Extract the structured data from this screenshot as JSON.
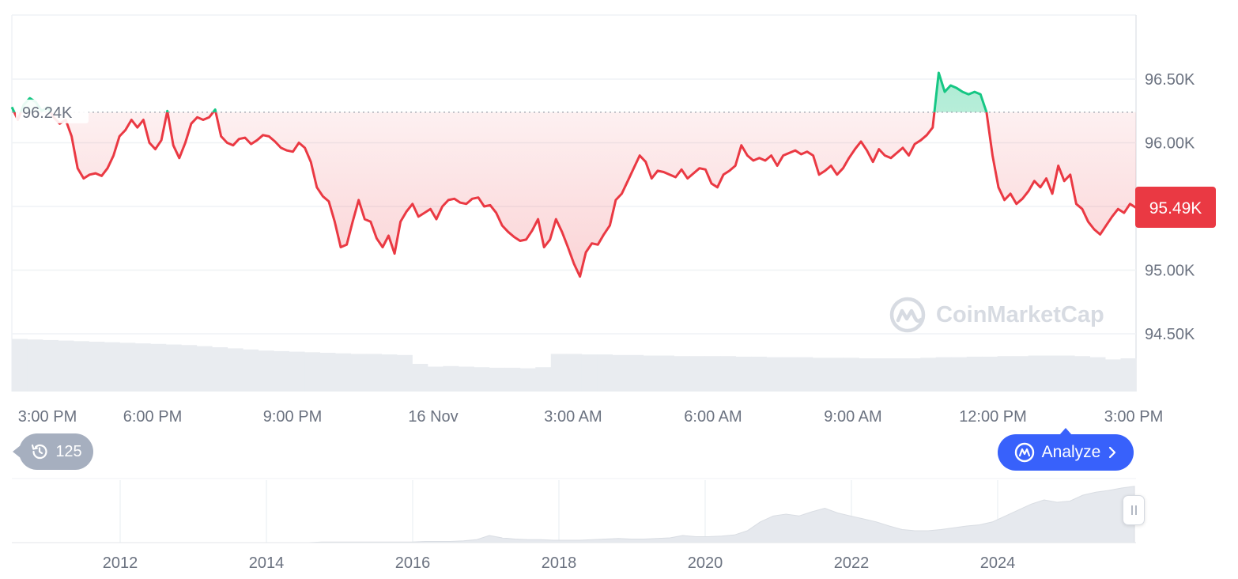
{
  "chart_data": {
    "type": "line",
    "title": "",
    "xlabel": "",
    "ylabel": "",
    "ylim": [
      94250,
      97000
    ],
    "y_ticks": [
      {
        "value": 96500,
        "label": "96.50K"
      },
      {
        "value": 96000,
        "label": "96.00K"
      },
      {
        "value": 95000,
        "label": "95.00K"
      },
      {
        "value": 94500,
        "label": "94.50K"
      }
    ],
    "x_ticks": [
      "3:00 PM",
      "6:00 PM",
      "9:00 PM",
      "16 Nov",
      "3:00 AM",
      "6:00 AM",
      "9:00 AM",
      "12:00 PM",
      "3:00 PM"
    ],
    "reference": {
      "value": 96240,
      "label": "96.24K"
    },
    "current": {
      "value": 95490,
      "label": "95.49K"
    },
    "series": [
      {
        "values": [
          96280,
          96180,
          96300,
          96350,
          96320,
          96250,
          96280,
          96200,
          96150,
          96180,
          96050,
          95800,
          95720,
          95750,
          95760,
          95740,
          95800,
          95900,
          96050,
          96100,
          96180,
          96120,
          96180,
          96000,
          95950,
          96020,
          96250,
          95980,
          95880,
          96000,
          96150,
          96200,
          96180,
          96200,
          96260,
          96050,
          96000,
          95980,
          96030,
          96040,
          95990,
          96020,
          96060,
          96050,
          96010,
          95960,
          95940,
          95930,
          96000,
          95960,
          95850,
          95650,
          95580,
          95540,
          95380,
          95180,
          95200,
          95380,
          95550,
          95400,
          95380,
          95250,
          95180,
          95270,
          95130,
          95380,
          95460,
          95520,
          95420,
          95450,
          95480,
          95400,
          95500,
          95550,
          95560,
          95530,
          95520,
          95560,
          95570,
          95500,
          95510,
          95450,
          95350,
          95300,
          95260,
          95230,
          95240,
          95310,
          95400,
          95180,
          95240,
          95400,
          95300,
          95180,
          95050,
          94950,
          95140,
          95210,
          95200,
          95280,
          95350,
          95550,
          95600,
          95700,
          95800,
          95900,
          95850,
          95720,
          95780,
          95770,
          95750,
          95730,
          95790,
          95720,
          95760,
          95800,
          95790,
          95680,
          95650,
          95750,
          95780,
          95820,
          95980,
          95900,
          95860,
          95880,
          95860,
          95900,
          95820,
          95900,
          95920,
          95940,
          95910,
          95930,
          95900,
          95750,
          95780,
          95820,
          95750,
          95800,
          95880,
          95950,
          96010,
          95940,
          95850,
          95950,
          95900,
          95880,
          95920,
          95960,
          95900,
          95990,
          96020,
          96060,
          96120,
          96550,
          96400,
          96450,
          96430,
          96400,
          96380,
          96400,
          96380,
          96240,
          95900,
          95650,
          95550,
          95600,
          95520,
          95560,
          95620,
          95700,
          95650,
          95720,
          95600,
          95820,
          95700,
          95750,
          95520,
          95480,
          95380,
          95320,
          95280,
          95350,
          95420,
          95480,
          95450,
          95520,
          95490
        ]
      }
    ],
    "volume_bars_relative": [
      0.95,
      0.94,
      0.93,
      0.92,
      0.91,
      0.9,
      0.89,
      0.88,
      0.87,
      0.86,
      0.85,
      0.84,
      0.82,
      0.8,
      0.78,
      0.76,
      0.74,
      0.73,
      0.72,
      0.71,
      0.7,
      0.69,
      0.68,
      0.68,
      0.67,
      0.66,
      0.5,
      0.45,
      0.46,
      0.45,
      0.44,
      0.43,
      0.43,
      0.42,
      0.44,
      0.68,
      0.68,
      0.67,
      0.67,
      0.66,
      0.66,
      0.65,
      0.65,
      0.64,
      0.64,
      0.64,
      0.64,
      0.63,
      0.63,
      0.62,
      0.62,
      0.62,
      0.61,
      0.61,
      0.61,
      0.6,
      0.6,
      0.6,
      0.6,
      0.61,
      0.62,
      0.62,
      0.63,
      0.63,
      0.64,
      0.64,
      0.65,
      0.65,
      0.65,
      0.64,
      0.62,
      0.58,
      0.6
    ],
    "navigator": {
      "x_ticks": [
        "2012",
        "2014",
        "2016",
        "2018",
        "2020",
        "2022",
        "2024"
      ],
      "relative_values": [
        0.0,
        0.0,
        0.0,
        0.0,
        0.0,
        0.0,
        0.0,
        0.0,
        0.0,
        0.0,
        0.0,
        0.0,
        0.0,
        0.0,
        0.0,
        0.0,
        0.0,
        0.0,
        0.0,
        0.0,
        0.0,
        0.0,
        0.0,
        0.0,
        0.01,
        0.01,
        0.01,
        0.01,
        0.01,
        0.01,
        0.01,
        0.01,
        0.02,
        0.02,
        0.02,
        0.03,
        0.05,
        0.12,
        0.08,
        0.06,
        0.05,
        0.05,
        0.04,
        0.04,
        0.04,
        0.05,
        0.06,
        0.07,
        0.06,
        0.06,
        0.07,
        0.08,
        0.12,
        0.1,
        0.1,
        0.11,
        0.13,
        0.2,
        0.35,
        0.45,
        0.48,
        0.45,
        0.52,
        0.58,
        0.5,
        0.45,
        0.4,
        0.35,
        0.28,
        0.22,
        0.2,
        0.2,
        0.22,
        0.25,
        0.28,
        0.3,
        0.35,
        0.45,
        0.55,
        0.65,
        0.72,
        0.68,
        0.7,
        0.8,
        0.85,
        0.88,
        0.92,
        0.95
      ]
    }
  },
  "ui": {
    "history_count": "125",
    "analyze_label": "Analyze",
    "watermark": "CoinMarketCap"
  },
  "colors": {
    "up": "#16c784",
    "down": "#ea3943",
    "accent": "#3861fb",
    "grid": "#eff2f5",
    "axis_text": "#6b7280"
  }
}
